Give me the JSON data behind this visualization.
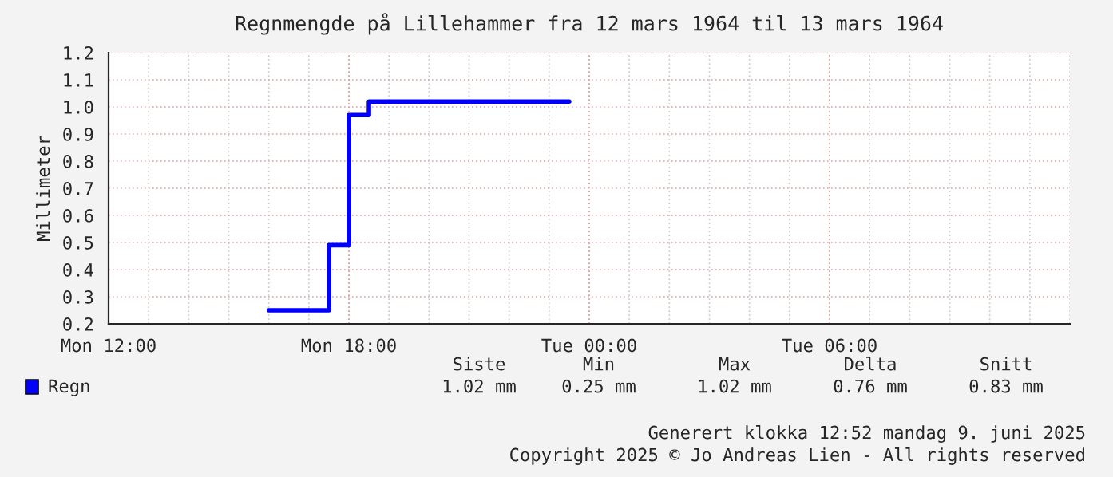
{
  "chart_data": {
    "type": "step",
    "title": "Regnmengde på Lillehammer fra 12 mars 1964 til 13 mars 1964",
    "ylabel": "Millimeter",
    "x": [
      "1964-03-12T16:00",
      "1964-03-12T17:30",
      "1964-03-12T18:00",
      "1964-03-12T18:30",
      "1964-03-12T23:30"
    ],
    "series": [
      {
        "name": "Regn",
        "color": "#0000ff",
        "values": [
          0.25,
          0.49,
          0.97,
          1.02,
          1.02
        ]
      }
    ],
    "xlim": [
      "1964-03-12T12:00",
      "1964-03-13T12:00"
    ],
    "xticks": [
      {
        "value": "1964-03-12T12:00",
        "label": "Mon 12:00"
      },
      {
        "value": "1964-03-12T18:00",
        "label": "Mon 18:00"
      },
      {
        "value": "1964-03-13T00:00",
        "label": "Tue 00:00"
      },
      {
        "value": "1964-03-13T06:00",
        "label": "Tue 06:00"
      }
    ],
    "ylim": [
      0.2,
      1.2
    ],
    "yticks": [
      0.2,
      0.3,
      0.4,
      0.5,
      0.6,
      0.7,
      0.8,
      0.9,
      {
        "value": 1,
        "label": "1.0"
      },
      1.1,
      1.2
    ],
    "grid": true,
    "legend": "bottom",
    "annotations": [
      "Siste",
      "Min",
      "Max",
      "Delta",
      "Snitt",
      "1.02 mm",
      "0.25 mm",
      "1.02 mm",
      "0.76 mm",
      "0.83 mm",
      "Generert klokka 12:52 mandag 9. juni 2025",
      "Copyright 2025 © Jo Andreas Lien - All rights reserved"
    ]
  }
}
